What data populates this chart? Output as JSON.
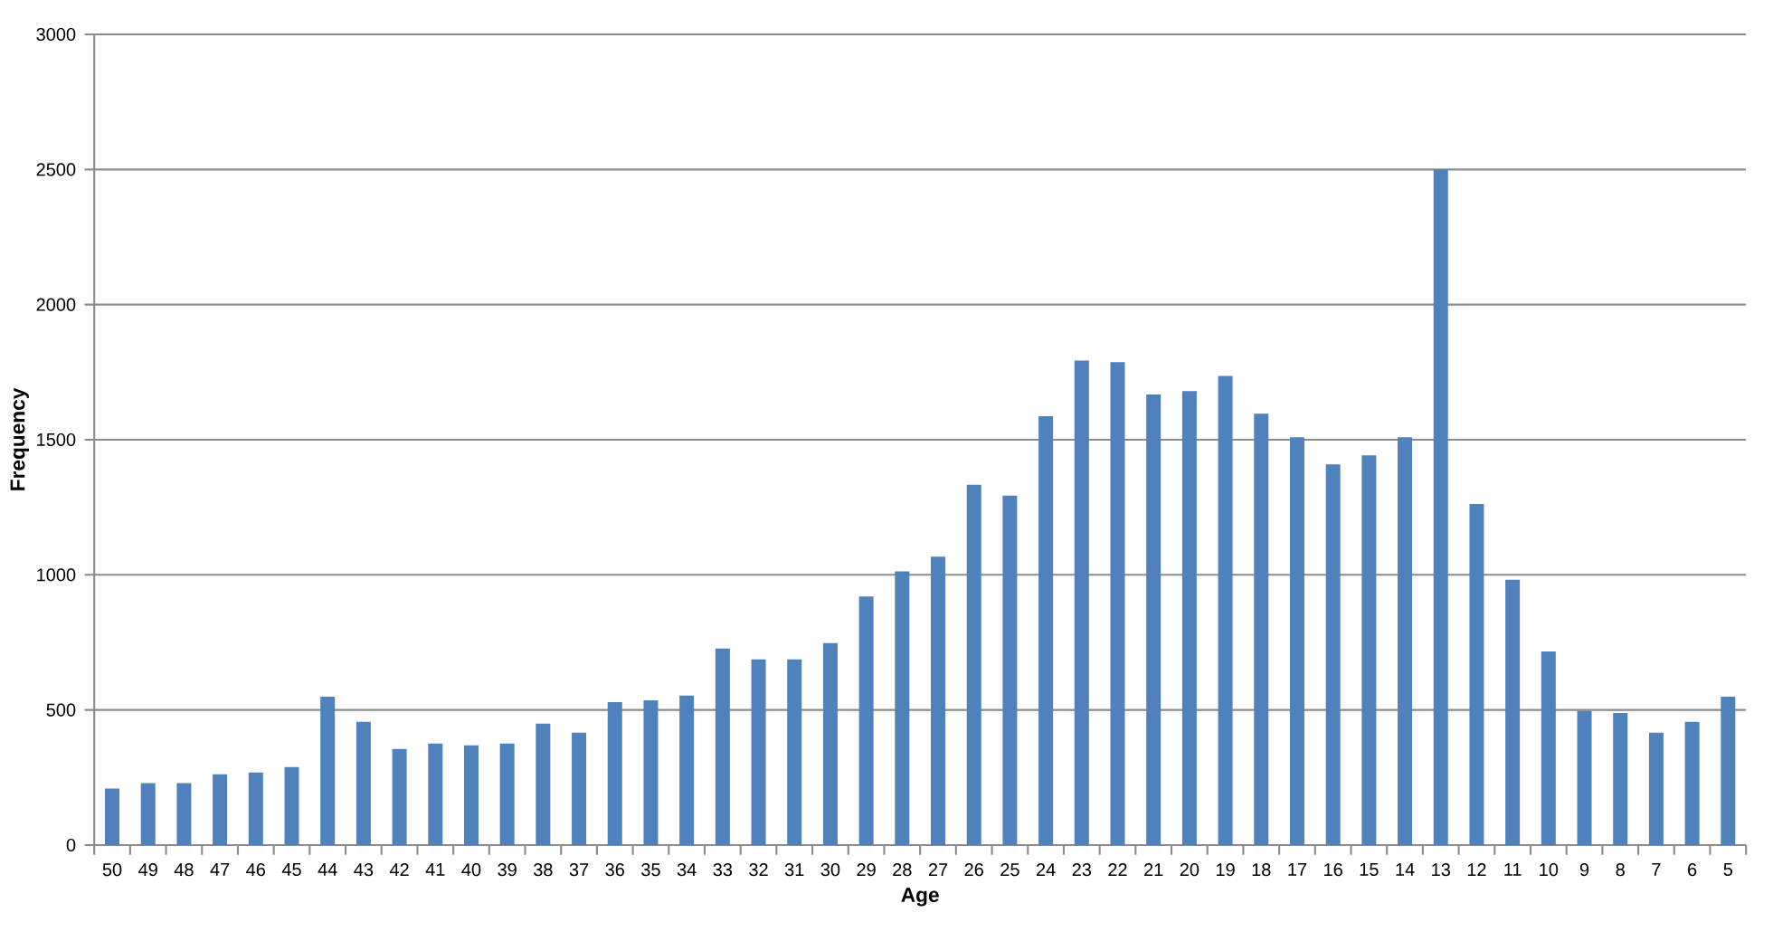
{
  "chart_data": {
    "type": "bar",
    "xlabel": "Age",
    "ylabel": "Frequency",
    "categories": [
      "50",
      "49",
      "48",
      "47",
      "46",
      "45",
      "44",
      "43",
      "42",
      "41",
      "40",
      "39",
      "38",
      "37",
      "36",
      "35",
      "34",
      "33",
      "32",
      "31",
      "30",
      "29",
      "28",
      "27",
      "26",
      "25",
      "24",
      "23",
      "22",
      "21",
      "20",
      "19",
      "18",
      "17",
      "16",
      "15",
      "14",
      "13",
      "12",
      "11",
      "10",
      "9",
      "8",
      "7",
      "6",
      "5"
    ],
    "values": [
      209,
      229,
      229,
      262,
      269,
      289,
      549,
      456,
      356,
      376,
      369,
      376,
      449,
      416,
      529,
      536,
      553,
      727,
      687,
      687,
      747,
      920,
      1013,
      1067,
      1333,
      1293,
      1587,
      1793,
      1787,
      1667,
      1680,
      1736,
      1596,
      1509,
      1409,
      1442,
      1509,
      2500,
      1262,
      982,
      716,
      496,
      489,
      416,
      456,
      549
    ],
    "color": "#4f81bd",
    "ylim": [
      0,
      3000
    ],
    "yticks": [
      0,
      500,
      1000,
      1500,
      2000,
      2500,
      3000
    ],
    "grid": "y"
  }
}
